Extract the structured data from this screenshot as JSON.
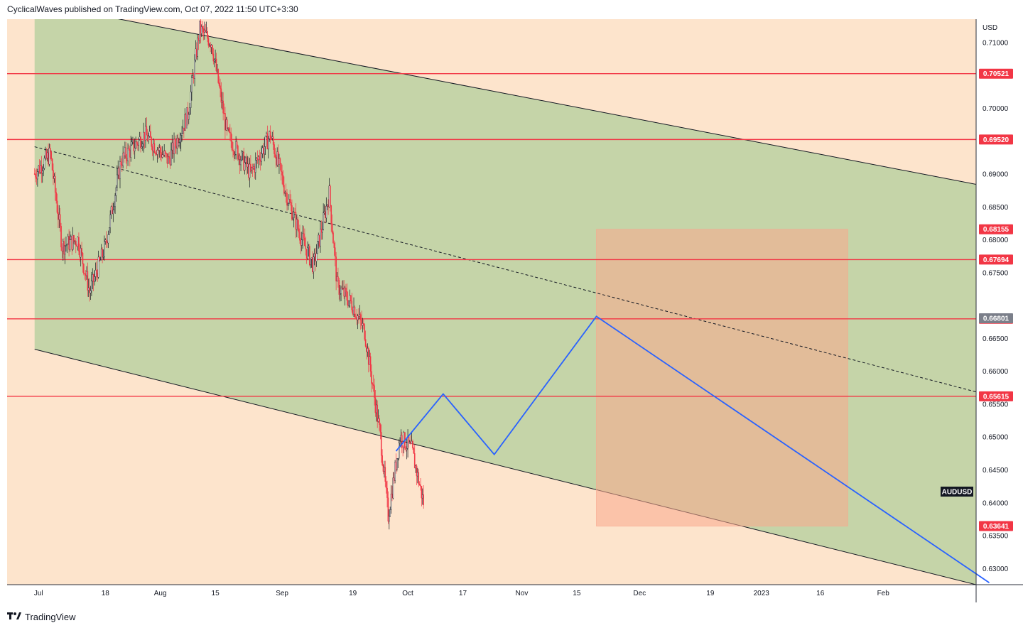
{
  "header": {
    "publisher_line": "CyclicalWaves published on TradingView.com, Oct 07, 2022 11:50 UTC+3:30"
  },
  "footer": {
    "brand_icon": "tradingview-logo-icon",
    "brand": "TradingView"
  },
  "colors": {
    "zone_outer": "#fde4cc",
    "channel_fill": "#c5d4a8",
    "resistance_line": "#f23645",
    "projection_line": "#2962ff",
    "box_fill": "#c8a48c",
    "up_candle": "#26a69a",
    "down_candle": "#f23645",
    "last_price_bg": "#131722"
  },
  "chart_data": {
    "type": "candlestick",
    "symbol": "AUDUSD",
    "currency": "USD",
    "x_axis_ticks": [
      "Jul",
      "18",
      "Aug",
      "15",
      "Sep",
      "19",
      "Oct",
      "17",
      "Nov",
      "15",
      "Dec",
      "19",
      "2023",
      "16",
      "Feb"
    ],
    "y_axis_ticks": [
      "0.71000",
      "0.70000",
      "0.69000",
      "0.68500",
      "0.68000",
      "0.67500",
      "0.66500",
      "0.66000",
      "0.65500",
      "0.65000",
      "0.64500",
      "0.64000",
      "0.63500",
      "0.63000"
    ],
    "ylim": [
      0.6275,
      0.7135
    ],
    "horizontal_levels": [
      {
        "label": "0.70521",
        "value": 0.70521
      },
      {
        "label": "0.69520",
        "value": 0.6952
      },
      {
        "label": "0.67694",
        "value": 0.67694
      },
      {
        "label": "0.66793",
        "value": 0.66793
      },
      {
        "label": "0.65615",
        "value": 0.65615
      }
    ],
    "price_tags": [
      {
        "label": "0.68155",
        "value": 0.68155,
        "style": "red"
      },
      {
        "label": "0.66801",
        "value": 0.66801,
        "style": "grey"
      },
      {
        "label": "0.63641",
        "value": 0.63641,
        "style": "red"
      }
    ],
    "symbol_tag": "AUDUSD",
    "channel": {
      "upper": [
        {
          "date": "2022-06-30",
          "value": 0.716
        },
        {
          "date": "2023-02-28",
          "value": 0.688
        }
      ],
      "lower": [
        {
          "date": "2022-06-30",
          "value": 0.6633
        },
        {
          "date": "2023-02-28",
          "value": 0.627
        }
      ],
      "midline": [
        {
          "date": "2022-06-30",
          "value": 0.6941
        },
        {
          "date": "2023-02-28",
          "value": 0.6563
        }
      ]
    },
    "projection_path": [
      {
        "date": "2022-09-30",
        "value": 0.6478
      },
      {
        "date": "2022-10-12",
        "value": 0.6565
      },
      {
        "date": "2022-10-25",
        "value": 0.6473
      },
      {
        "date": "2022-11-20",
        "value": 0.6683
      },
      {
        "date": "2023-02-28",
        "value": 0.6278
      }
    ],
    "target_box": {
      "from": "2022-11-20",
      "to": "2023-01-23",
      "top": 0.68155,
      "bottom": 0.63641
    },
    "price_series": [
      {
        "date": "2022-06-30",
        "value": 0.69
      },
      {
        "date": "2022-07-04",
        "value": 0.693
      },
      {
        "date": "2022-07-07",
        "value": 0.679
      },
      {
        "date": "2022-07-11",
        "value": 0.68
      },
      {
        "date": "2022-07-14",
        "value": 0.672
      },
      {
        "date": "2022-07-18",
        "value": 0.679
      },
      {
        "date": "2022-07-22",
        "value": 0.692
      },
      {
        "date": "2022-07-28",
        "value": 0.696
      },
      {
        "date": "2022-08-03",
        "value": 0.692
      },
      {
        "date": "2022-08-08",
        "value": 0.699
      },
      {
        "date": "2022-08-11",
        "value": 0.712
      },
      {
        "date": "2022-08-14",
        "value": 0.71
      },
      {
        "date": "2022-08-18",
        "value": 0.696
      },
      {
        "date": "2022-08-24",
        "value": 0.69
      },
      {
        "date": "2022-08-29",
        "value": 0.696
      },
      {
        "date": "2022-09-02",
        "value": 0.687
      },
      {
        "date": "2022-09-06",
        "value": 0.68
      },
      {
        "date": "2022-09-09",
        "value": 0.676
      },
      {
        "date": "2022-09-13",
        "value": 0.687
      },
      {
        "date": "2022-09-15",
        "value": 0.673
      },
      {
        "date": "2022-09-19",
        "value": 0.67
      },
      {
        "date": "2022-09-22",
        "value": 0.666
      },
      {
        "date": "2022-09-26",
        "value": 0.65
      },
      {
        "date": "2022-09-28",
        "value": 0.638
      },
      {
        "date": "2022-10-01",
        "value": 0.65
      },
      {
        "date": "2022-10-04",
        "value": 0.648
      },
      {
        "date": "2022-10-07",
        "value": 0.64
      }
    ]
  }
}
